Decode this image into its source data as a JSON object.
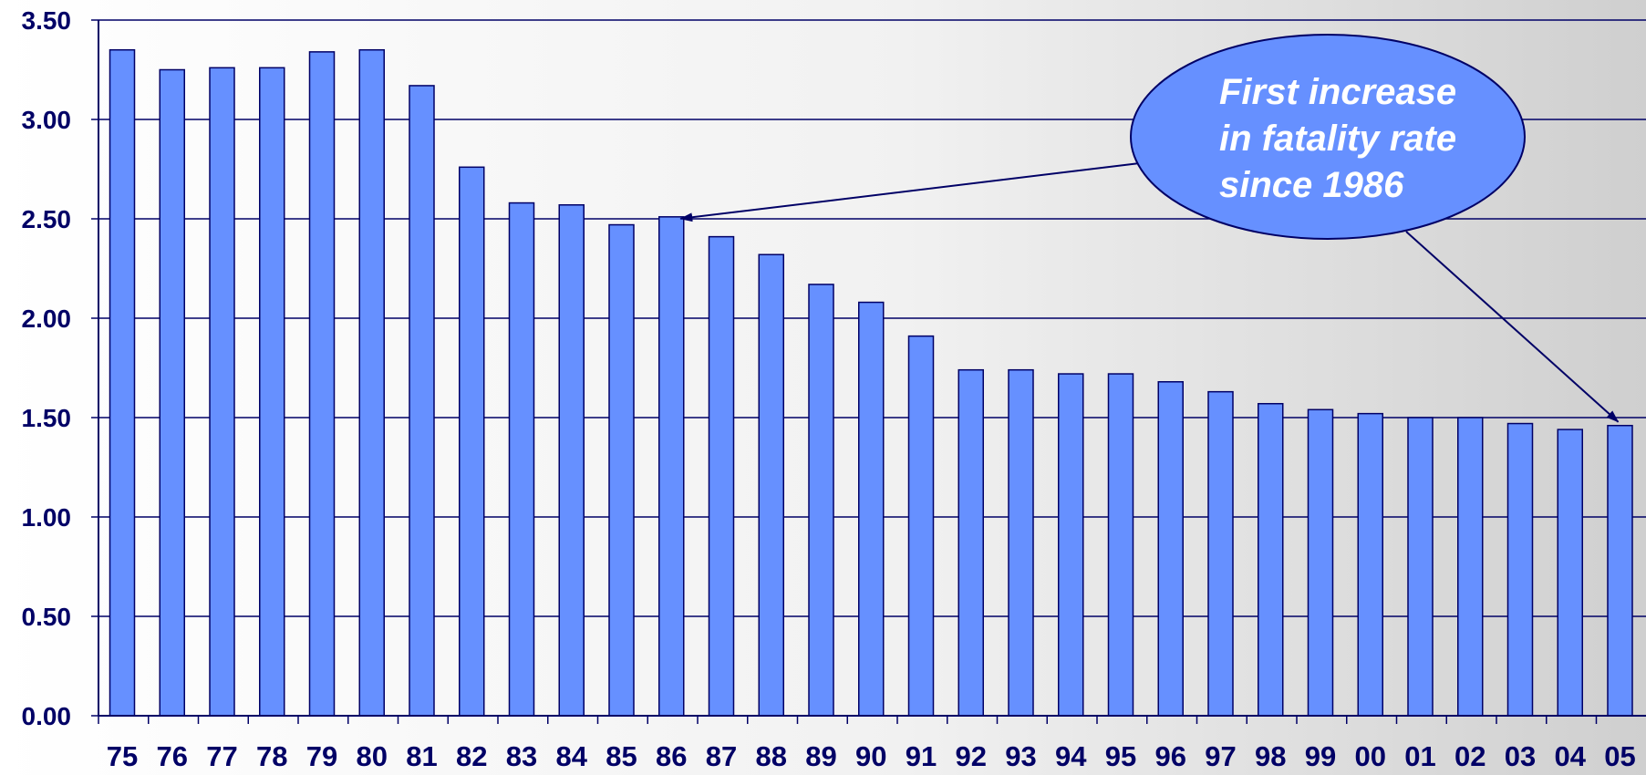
{
  "chart_data": {
    "type": "bar",
    "categories": [
      "75",
      "76",
      "77",
      "78",
      "79",
      "80",
      "81",
      "82",
      "83",
      "84",
      "85",
      "86",
      "87",
      "88",
      "89",
      "90",
      "91",
      "92",
      "93",
      "94",
      "95",
      "96",
      "97",
      "98",
      "99",
      "00",
      "01",
      "02",
      "03",
      "04",
      "05"
    ],
    "values": [
      3.35,
      3.25,
      3.26,
      3.26,
      3.34,
      3.35,
      3.17,
      2.76,
      2.58,
      2.57,
      2.47,
      2.51,
      2.41,
      2.32,
      2.17,
      2.08,
      1.91,
      1.74,
      1.74,
      1.72,
      1.72,
      1.68,
      1.63,
      1.57,
      1.54,
      1.52,
      1.5,
      1.5,
      1.47,
      1.44,
      1.46
    ],
    "ylim": [
      0,
      3.5
    ],
    "yticks": [
      "0.00",
      "0.50",
      "1.00",
      "1.50",
      "2.00",
      "2.50",
      "3.00",
      "3.50"
    ],
    "grid": true,
    "colors": {
      "bar": "#6690ff",
      "bar_edge": "#000066",
      "text": "#000066",
      "grid": "#000066"
    },
    "annotation": {
      "lines": [
        "First increase",
        "in fatality rate",
        "since 1986"
      ],
      "fill": "#6690ff",
      "points_to": [
        "86",
        "05"
      ]
    }
  }
}
